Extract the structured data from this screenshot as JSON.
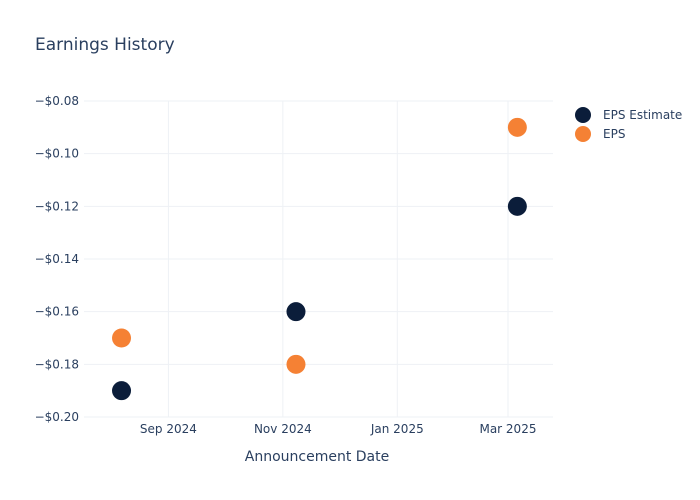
{
  "chart_data": {
    "type": "scatter",
    "title": "Earnings History",
    "xlabel": "Announcement Date",
    "ylabel": "",
    "x_ticks": [
      {
        "date": "2024-09-01",
        "label": "Sep 2024"
      },
      {
        "date": "2024-11-01",
        "label": "Nov 2024"
      },
      {
        "date": "2025-01-01",
        "label": "Jan 2025"
      },
      {
        "date": "2025-03-01",
        "label": "Mar 2025"
      }
    ],
    "xlim": [
      "2024-07-18",
      "2025-03-25"
    ],
    "ylim": [
      -0.2,
      -0.08
    ],
    "y_ticks": [
      {
        "value": -0.08,
        "label": "−$0.08"
      },
      {
        "value": -0.1,
        "label": "−$0.10"
      },
      {
        "value": -0.12,
        "label": "−$0.12"
      },
      {
        "value": -0.14,
        "label": "−$0.14"
      },
      {
        "value": -0.16,
        "label": "−$0.16"
      },
      {
        "value": -0.18,
        "label": "−$0.18"
      },
      {
        "value": -0.2,
        "label": "−$0.20"
      }
    ],
    "grid": true,
    "legend_position": "right",
    "series": [
      {
        "name": "EPS Estimate",
        "color": "#0b1d3a",
        "points": [
          {
            "x": "2024-08-07",
            "y": -0.19
          },
          {
            "x": "2024-11-08",
            "y": -0.16
          },
          {
            "x": "2025-03-06",
            "y": -0.12
          }
        ]
      },
      {
        "name": "EPS",
        "color": "#f58134",
        "points": [
          {
            "x": "2024-08-07",
            "y": -0.17
          },
          {
            "x": "2024-11-08",
            "y": -0.18
          },
          {
            "x": "2025-03-06",
            "y": -0.09
          }
        ]
      }
    ]
  }
}
